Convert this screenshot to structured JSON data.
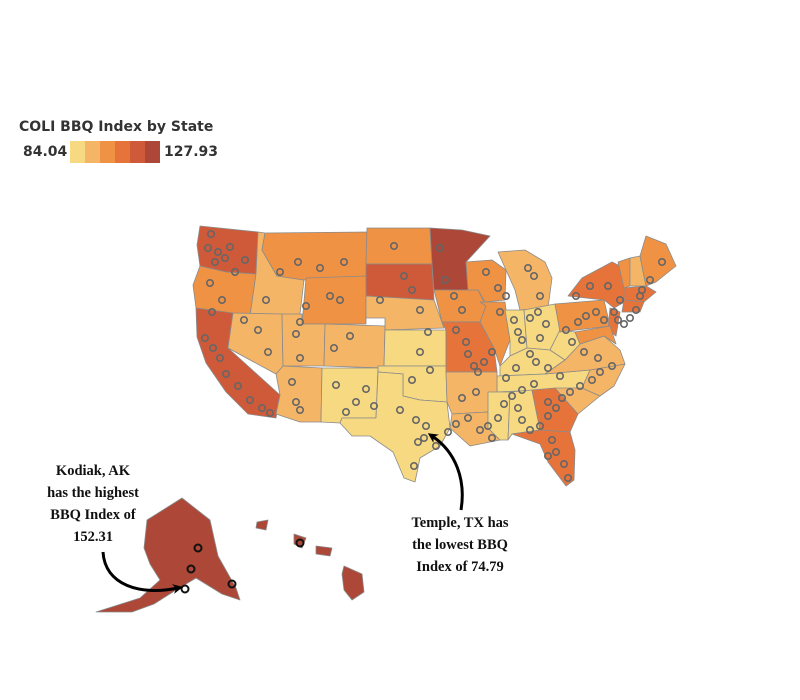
{
  "legend": {
    "title": "COLI BBQ Index by State",
    "min_label": "84.04",
    "max_label": "127.93",
    "colors": [
      "#f7d982",
      "#f5b566",
      "#ef9244",
      "#e6743a",
      "#cf5a3a",
      "#ad4737"
    ]
  },
  "annotations": {
    "kodiak": {
      "line1": "Kodiak, AK",
      "line2": "has the highest",
      "line3": "BBQ Index of",
      "line4": "152.31"
    },
    "temple": {
      "line1": "Temple, TX has",
      "line2": "the lowest BBQ",
      "line3": "Index of 74.79"
    }
  },
  "map_colors": {
    "lightest": "#f7d982",
    "light": "#f5b566",
    "medium": "#ef9244",
    "medium_dark": "#e6743a",
    "dark": "#cf5a3a",
    "darkest": "#ad4737",
    "border": "#8a8a8a",
    "marker": "#666666"
  }
}
